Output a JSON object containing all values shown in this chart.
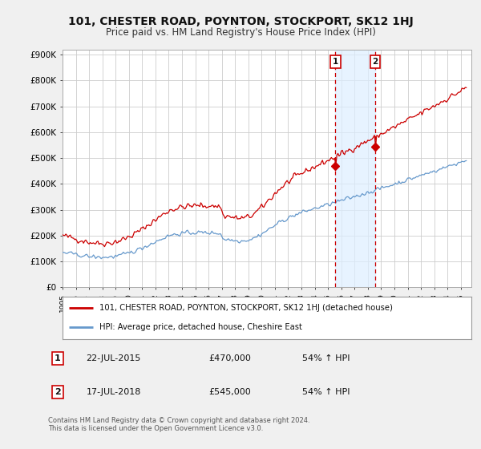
{
  "title": "101, CHESTER ROAD, POYNTON, STOCKPORT, SK12 1HJ",
  "subtitle": "Price paid vs. HM Land Registry's House Price Index (HPI)",
  "title_fontsize": 10,
  "subtitle_fontsize": 8.5,
  "ylabel_ticks": [
    "£0",
    "£100K",
    "£200K",
    "£300K",
    "£400K",
    "£500K",
    "£600K",
    "£700K",
    "£800K",
    "£900K"
  ],
  "ytick_values": [
    0,
    100000,
    200000,
    300000,
    400000,
    500000,
    600000,
    700000,
    800000,
    900000
  ],
  "ylim": [
    0,
    920000
  ],
  "xlim_start": 1995.0,
  "xlim_end": 2025.8,
  "red_line_label": "101, CHESTER ROAD, POYNTON, STOCKPORT, SK12 1HJ (detached house)",
  "blue_line_label": "HPI: Average price, detached house, Cheshire East",
  "transaction1_label": "1",
  "transaction1_date": "22-JUL-2015",
  "transaction1_price": "£470,000",
  "transaction1_hpi": "54% ↑ HPI",
  "transaction2_label": "2",
  "transaction2_date": "17-JUL-2018",
  "transaction2_price": "£545,000",
  "transaction2_hpi": "54% ↑ HPI",
  "vline1_x": 2015.55,
  "vline2_x": 2018.55,
  "marker1_red_x": 2015.55,
  "marker1_red_y": 470000,
  "marker2_red_x": 2018.55,
  "marker2_red_y": 545000,
  "footer": "Contains HM Land Registry data © Crown copyright and database right 2024.\nThis data is licensed under the Open Government Licence v3.0.",
  "background_color": "#f0f0f0",
  "plot_bg_color": "#ffffff",
  "grid_color": "#cccccc",
  "red_color": "#cc0000",
  "blue_color": "#6699cc",
  "vline_color": "#cc0000",
  "highlight_fill": "#ddeeff",
  "highlight_alpha": 0.7
}
